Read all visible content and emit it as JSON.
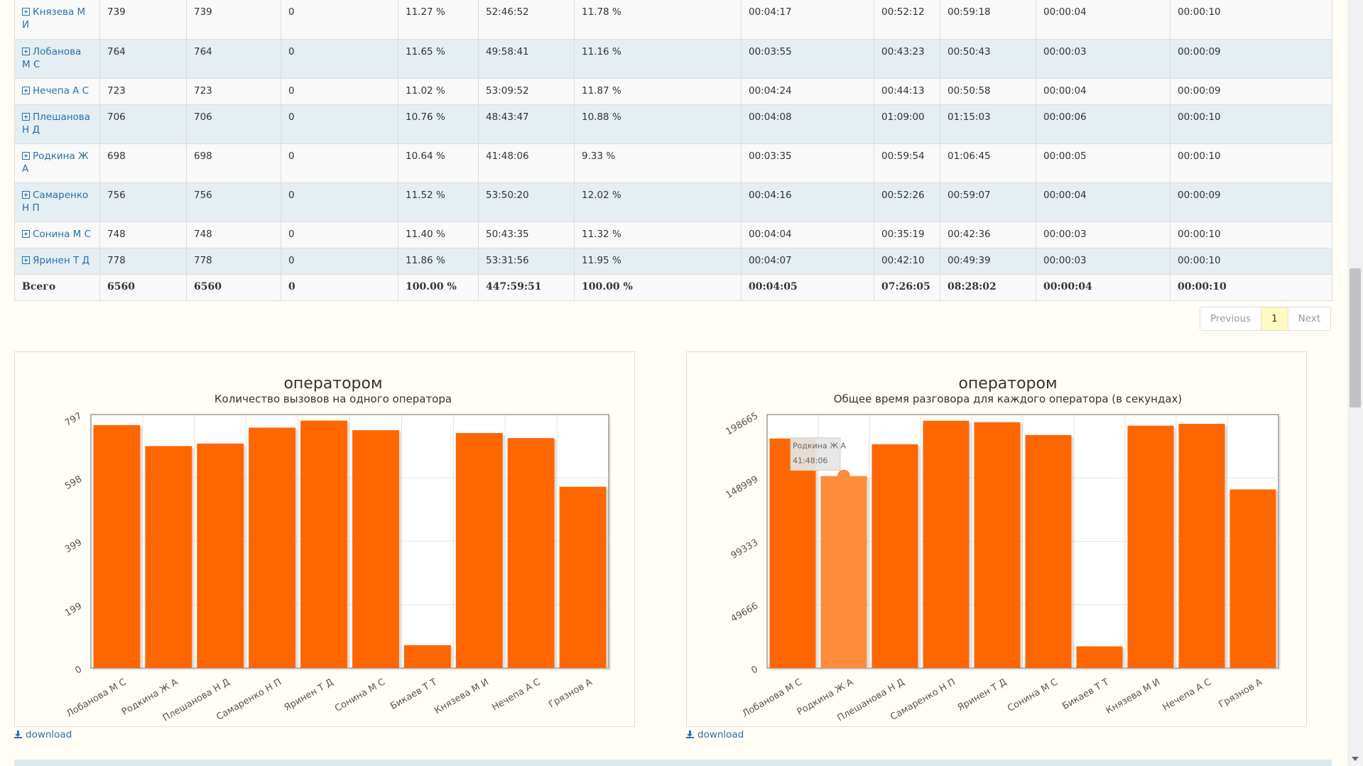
{
  "table": {
    "rows": [
      {
        "name": "Князева М И",
        "c1": "739",
        "c2": "739",
        "c3": "0",
        "c4": "11.27 %",
        "c5": "52:46:52",
        "c6": "11.78 %",
        "c7": "00:04:17",
        "c8": "00:52:12",
        "c9": "00:59:18",
        "c10": "00:00:04",
        "c11": "00:00:10"
      },
      {
        "name": "Лобанова М С",
        "c1": "764",
        "c2": "764",
        "c3": "0",
        "c4": "11.65 %",
        "c5": "49:58:41",
        "c6": "11.16 %",
        "c7": "00:03:55",
        "c8": "00:43:23",
        "c9": "00:50:43",
        "c10": "00:00:03",
        "c11": "00:00:09"
      },
      {
        "name": "Нечепа А С",
        "c1": "723",
        "c2": "723",
        "c3": "0",
        "c4": "11.02 %",
        "c5": "53:09:52",
        "c6": "11.87 %",
        "c7": "00:04:24",
        "c8": "00:44:13",
        "c9": "00:50:58",
        "c10": "00:00:04",
        "c11": "00:00:09"
      },
      {
        "name": "Плешанова Н Д",
        "c1": "706",
        "c2": "706",
        "c3": "0",
        "c4": "10.76 %",
        "c5": "48:43:47",
        "c6": "10.88 %",
        "c7": "00:04:08",
        "c8": "01:09:00",
        "c9": "01:15:03",
        "c10": "00:00:06",
        "c11": "00:00:10"
      },
      {
        "name": "Родкина Ж А",
        "c1": "698",
        "c2": "698",
        "c3": "0",
        "c4": "10.64 %",
        "c5": "41:48:06",
        "c6": "9.33 %",
        "c7": "00:03:35",
        "c8": "00:59:54",
        "c9": "01:06:45",
        "c10": "00:00:05",
        "c11": "00:00:10"
      },
      {
        "name": "Самаренко Н П",
        "c1": "756",
        "c2": "756",
        "c3": "0",
        "c4": "11.52 %",
        "c5": "53:50:20",
        "c6": "12.02 %",
        "c7": "00:04:16",
        "c8": "00:52:26",
        "c9": "00:59:07",
        "c10": "00:00:04",
        "c11": "00:00:09"
      },
      {
        "name": "Сонина М С",
        "c1": "748",
        "c2": "748",
        "c3": "0",
        "c4": "11.40 %",
        "c5": "50:43:35",
        "c6": "11.32 %",
        "c7": "00:04:04",
        "c8": "00:35:19",
        "c9": "00:42:36",
        "c10": "00:00:03",
        "c11": "00:00:10"
      },
      {
        "name": "Яринен Т Д",
        "c1": "778",
        "c2": "778",
        "c3": "0",
        "c4": "11.86 %",
        "c5": "53:31:56",
        "c6": "11.95 %",
        "c7": "00:04:07",
        "c8": "00:42:10",
        "c9": "00:49:39",
        "c10": "00:00:03",
        "c11": "00:00:10"
      }
    ],
    "total": {
      "name": "Всего",
      "c1": "6560",
      "c2": "6560",
      "c3": "0",
      "c4": "100.00 %",
      "c5": "447:59:51",
      "c6": "100.00 %",
      "c7": "00:04:05",
      "c8": "07:26:05",
      "c9": "08:28:02",
      "c10": "00:00:04",
      "c11": "00:00:10"
    }
  },
  "pagination": {
    "previous": "Previous",
    "page": "1",
    "next": "Next"
  },
  "download_label": "download",
  "colors": {
    "bar": "#ff6600",
    "bar_hover": "#ff8c3a",
    "link": "#2a6fb0"
  },
  "chart_data": [
    {
      "type": "bar",
      "title": "оператором",
      "subtitle": "Количество вызовов на одного оператора",
      "categories": [
        "Лобанова М С",
        "Родкина Ж А",
        "Плешанова Н Д",
        "Самаренко Н П",
        "Яринен Т Д",
        "Сонина М С",
        "Бикаев Т Т",
        "Князева М И",
        "Нечепа А С",
        "Грязнов А"
      ],
      "values": [
        764,
        698,
        706,
        756,
        778,
        748,
        72,
        739,
        723,
        570
      ],
      "yticks": [
        "0",
        "199",
        "399",
        "598",
        "797"
      ],
      "ylim": [
        0,
        797
      ],
      "grid": true
    },
    {
      "type": "bar",
      "title": "оператором",
      "subtitle": "Общее время разговора для каждого оператора (в секундах)",
      "categories": [
        "Лобанова М С",
        "Родкина Ж А",
        "Плешанова Н Д",
        "Самаренко Н П",
        "Яринен Т Д",
        "Сонина М С",
        "Бикаев Т Т",
        "Князева М И",
        "Нечепа А С",
        "Грязнов А"
      ],
      "values": [
        179921,
        150486,
        175427,
        193820,
        192716,
        182632,
        17000,
        189972,
        191392,
        140000
      ],
      "yticks": [
        "0",
        "49666",
        "99333",
        "148999",
        "198665"
      ],
      "ylim": [
        0,
        198665
      ],
      "grid": true,
      "highlighted_index": 1,
      "tooltip": {
        "name": "Родкина Ж А",
        "value": "41:48:06"
      }
    }
  ]
}
